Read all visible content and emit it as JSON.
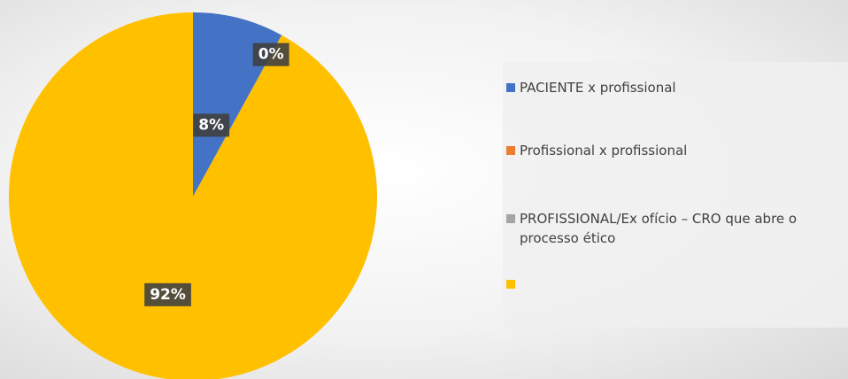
{
  "chart_data": {
    "type": "pie",
    "categories": [
      "PACIENTE x profissional",
      "Profissional x profissional",
      "PROFISSIONAL/Ex ofício – CRO que abre o processo ético",
      null
    ],
    "values": [
      8,
      0,
      null,
      92
    ],
    "value_labels": [
      "8%",
      "0%",
      null,
      "92%"
    ],
    "colors": [
      "#4472c4",
      "#ed7d31",
      "#a5a5a5",
      "#ffc000"
    ],
    "legend": "right"
  }
}
